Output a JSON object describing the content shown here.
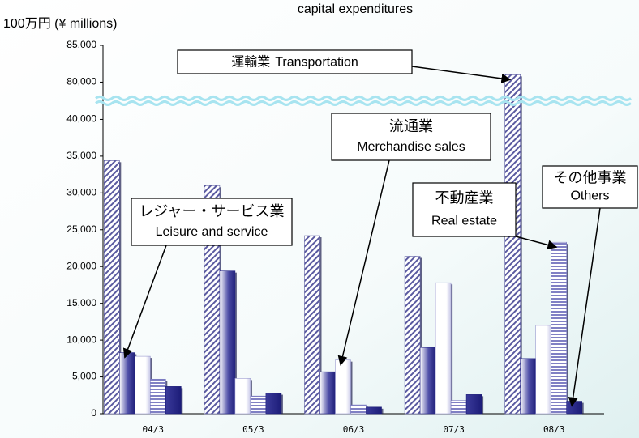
{
  "chart_data": {
    "type": "bar",
    "title": "capital expenditures",
    "y_axis_label": "100万円 (¥ millions)",
    "categories": [
      "04/3",
      "05/3",
      "06/3",
      "07/3",
      "08/3"
    ],
    "series": [
      {
        "name": "運輸業",
        "name_en": "Transportation",
        "color": "#5a5aa0",
        "pattern": "hatch",
        "values": [
          34400,
          31000,
          24200,
          21400,
          81000
        ]
      },
      {
        "name": "レジャー・サービス業",
        "name_en": "Leisure and service",
        "color": "#2a2a8a",
        "pattern": "gradient",
        "values": [
          8300,
          19400,
          5700,
          9000,
          7500
        ]
      },
      {
        "name": "流通業",
        "name_en": "Merchandise sales",
        "color": "#9a9ad0",
        "pattern": "light-gradient",
        "values": [
          7800,
          4800,
          7300,
          17800,
          12000
        ]
      },
      {
        "name": "不動産業",
        "name_en": "Real estate",
        "color": "#7a7ac0",
        "pattern": "stripes",
        "values": [
          4700,
          2400,
          1200,
          1800,
          23300
        ]
      },
      {
        "name": "その他事業",
        "name_en": "Others",
        "color": "#1c1c78",
        "pattern": "solid",
        "values": [
          3700,
          2800,
          900,
          2600,
          1700
        ]
      }
    ],
    "ylim": [
      0,
      85000
    ],
    "axis_break": [
      40000,
      80000
    ],
    "yticks": [
      {
        "value": 0,
        "label": "0"
      },
      {
        "value": 5000,
        "label": "5,000"
      },
      {
        "value": 10000,
        "label": "10,000"
      },
      {
        "value": 15000,
        "label": "15,000"
      },
      {
        "value": 20000,
        "label": "20,000"
      },
      {
        "value": 25000,
        "label": "25,000"
      },
      {
        "value": 30000,
        "label": "30,000"
      },
      {
        "value": 35000,
        "label": "35,000"
      },
      {
        "value": 40000,
        "label": "40,000"
      },
      {
        "value": 80000,
        "label": "80,000"
      },
      {
        "value": 85000,
        "label": "85,000"
      }
    ],
    "grid": false
  }
}
